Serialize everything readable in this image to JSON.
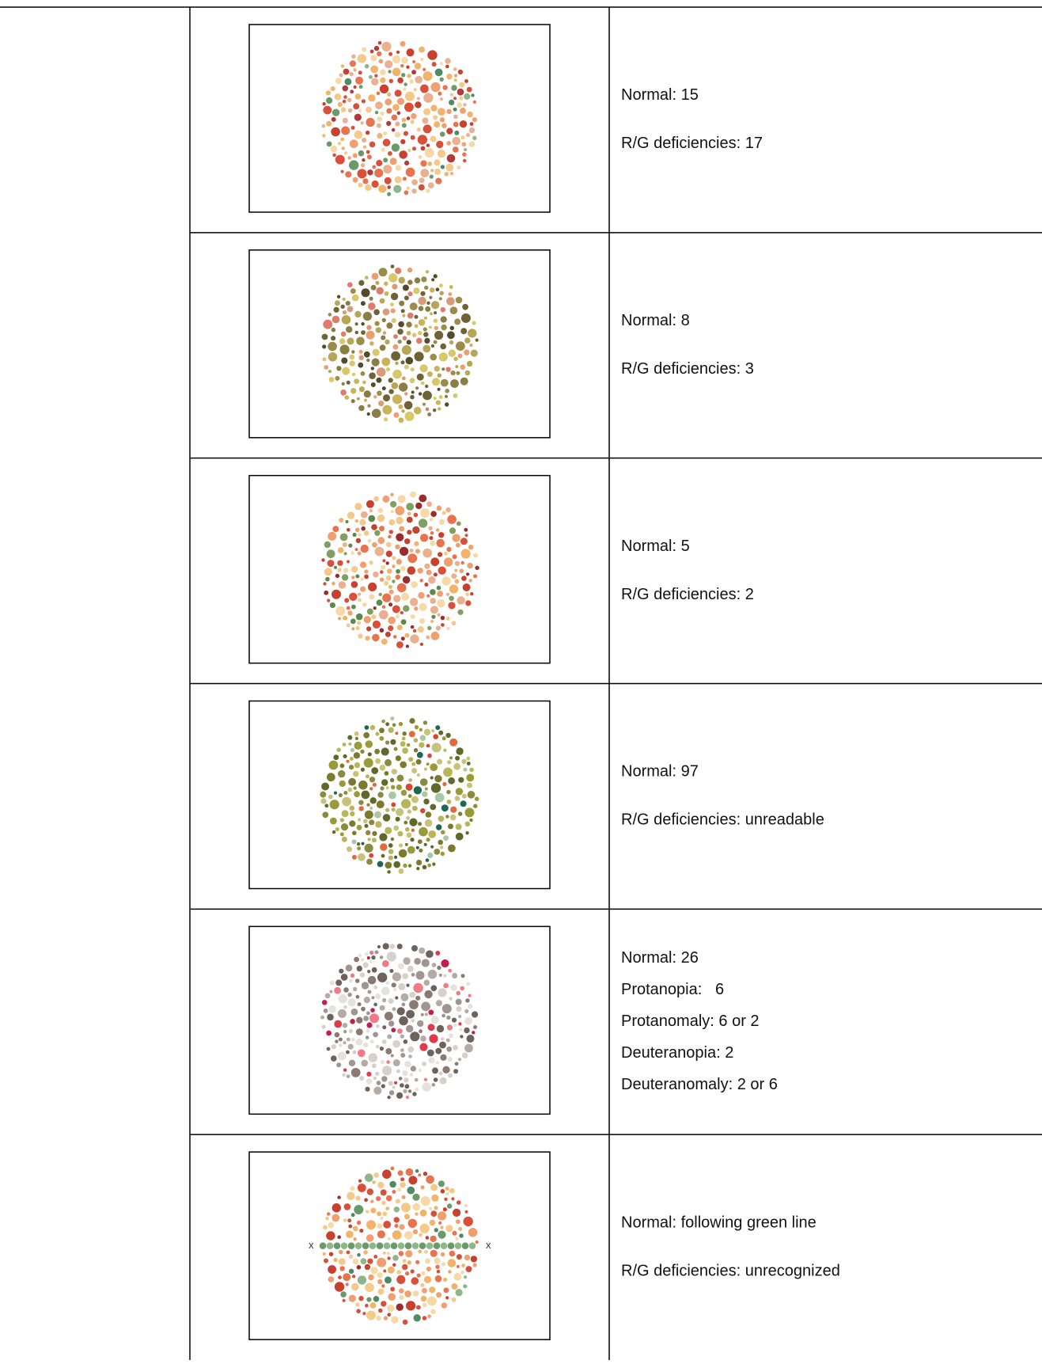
{
  "rows": [
    {
      "lines": [
        "Normal: 15",
        "R/G deficiencies: 17"
      ]
    },
    {
      "lines": [
        "Normal: 8",
        "R/G deficiencies: 3"
      ]
    },
    {
      "lines": [
        "Normal: 5",
        "R/G deficiencies: 2"
      ]
    },
    {
      "lines": [
        "Normal: 97",
        "R/G deficiencies: unreadable"
      ]
    },
    {
      "lines": [
        "Normal: 26",
        "Protanopia:   6",
        "Protanomaly: 6 or 2",
        "Deuteranopia: 2",
        "Deuteranomaly: 2 or 6"
      ]
    },
    {
      "lines": [
        "Normal: following green line",
        "R/G deficiencies: unrecognized"
      ],
      "plate_marks": [
        "x",
        "x"
      ]
    }
  ]
}
